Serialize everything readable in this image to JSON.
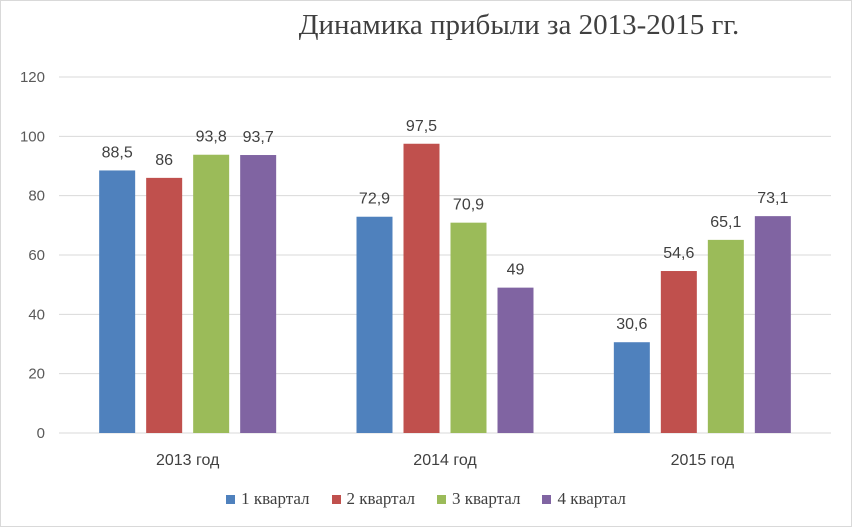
{
  "chart_data": {
    "type": "bar",
    "title": "Динамика прибыли за 2013-2015  гг.",
    "categories": [
      "2013 год",
      "2014 год",
      "2015 год"
    ],
    "series": [
      {
        "name": "1 квартал",
        "color": "#4f81bd",
        "values": [
          88.5,
          72.9,
          30.6
        ],
        "labels": [
          "88,5",
          "72,9",
          "30,6"
        ]
      },
      {
        "name": "2 квартал",
        "color": "#c0504d",
        "values": [
          86,
          97.5,
          54.6
        ],
        "labels": [
          "86",
          "97,5",
          "54,6"
        ]
      },
      {
        "name": "3 квартал",
        "color": "#9bbb59",
        "values": [
          93.8,
          70.9,
          65.1
        ],
        "labels": [
          "93,8",
          "70,9",
          "65,1"
        ]
      },
      {
        "name": "4 квартал",
        "color": "#8064a2",
        "values": [
          93.7,
          49,
          73.1
        ],
        "labels": [
          "93,7",
          "49",
          "73,1"
        ]
      }
    ],
    "ylim": [
      0,
      120
    ],
    "yticks": [
      0,
      20,
      40,
      60,
      80,
      100,
      120
    ],
    "grid": true,
    "legend": "bottom",
    "xlabel": "",
    "ylabel": ""
  }
}
